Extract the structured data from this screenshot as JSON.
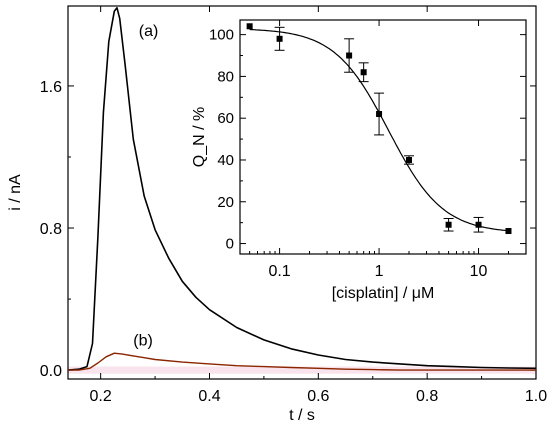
{
  "chart_data": [
    {
      "type": "line",
      "xlabel": "t / s",
      "ylabel": "i / nA",
      "xlim": [
        0.14,
        1.0
      ],
      "ylim": [
        -0.05,
        2.05
      ],
      "x_ticks": [
        "0.2",
        "0.4",
        "0.6",
        "0.8",
        "1.0"
      ],
      "y_ticks": [
        "0.0",
        "0.8",
        "1.6"
      ],
      "grid": false,
      "series": [
        {
          "name": "(a)",
          "color": "#000000",
          "x": [
            0.14,
            0.16,
            0.175,
            0.185,
            0.195,
            0.205,
            0.215,
            0.225,
            0.23,
            0.235,
            0.245,
            0.26,
            0.28,
            0.3,
            0.325,
            0.35,
            0.375,
            0.4,
            0.45,
            0.5,
            0.55,
            0.6,
            0.65,
            0.7,
            0.75,
            0.8,
            0.85,
            0.9,
            0.95,
            1.0
          ],
          "y": [
            0.0,
            0.005,
            0.02,
            0.15,
            0.75,
            1.45,
            1.85,
            2.02,
            2.04,
            1.98,
            1.72,
            1.3,
            0.98,
            0.79,
            0.63,
            0.5,
            0.41,
            0.34,
            0.24,
            0.17,
            0.12,
            0.085,
            0.06,
            0.045,
            0.035,
            0.025,
            0.02,
            0.015,
            0.012,
            0.01
          ]
        },
        {
          "name": "(b)",
          "color": "#8b2500",
          "x": [
            0.14,
            0.16,
            0.18,
            0.195,
            0.21,
            0.225,
            0.24,
            0.26,
            0.28,
            0.3,
            0.35,
            0.4,
            0.45,
            0.5,
            0.55,
            0.6,
            0.65,
            0.7,
            0.75,
            0.8,
            0.85,
            0.9,
            0.95,
            1.0
          ],
          "y": [
            0.0,
            0.0,
            0.01,
            0.04,
            0.075,
            0.095,
            0.09,
            0.08,
            0.07,
            0.06,
            0.045,
            0.035,
            0.025,
            0.02,
            0.015,
            0.01,
            0.005,
            0.003,
            0.0,
            0.0,
            0.0,
            0.0,
            0.0,
            0.0
          ]
        }
      ],
      "annotations": [
        "(a)",
        "(b)"
      ]
    },
    {
      "type": "scatter",
      "xlabel": "[cisplatin] / μM",
      "ylabel": "Q_N / %",
      "xscale": "log",
      "xlim": [
        0.04,
        30
      ],
      "ylim": [
        -5,
        107
      ],
      "x_ticks": [
        "0.1",
        "1",
        "10"
      ],
      "y_ticks": [
        "0",
        "20",
        "40",
        "60",
        "80",
        "100"
      ],
      "points": [
        {
          "x": 0.05,
          "y": 104,
          "err": 0
        },
        {
          "x": 0.1,
          "y": 98,
          "err": 5.5
        },
        {
          "x": 0.5,
          "y": 90,
          "err": 8
        },
        {
          "x": 0.7,
          "y": 82,
          "err": 4.5
        },
        {
          "x": 1,
          "y": 62,
          "err": 10
        },
        {
          "x": 2,
          "y": 40,
          "err": 2
        },
        {
          "x": 5,
          "y": 9,
          "err": 3
        },
        {
          "x": 10,
          "y": 9,
          "err": 3.5
        },
        {
          "x": 20,
          "y": 6,
          "err": 0
        }
      ],
      "fit": {
        "type": "sigmoid",
        "top": 103,
        "bottom": 5,
        "ic50": 1.25,
        "hill": 1.6
      }
    }
  ]
}
